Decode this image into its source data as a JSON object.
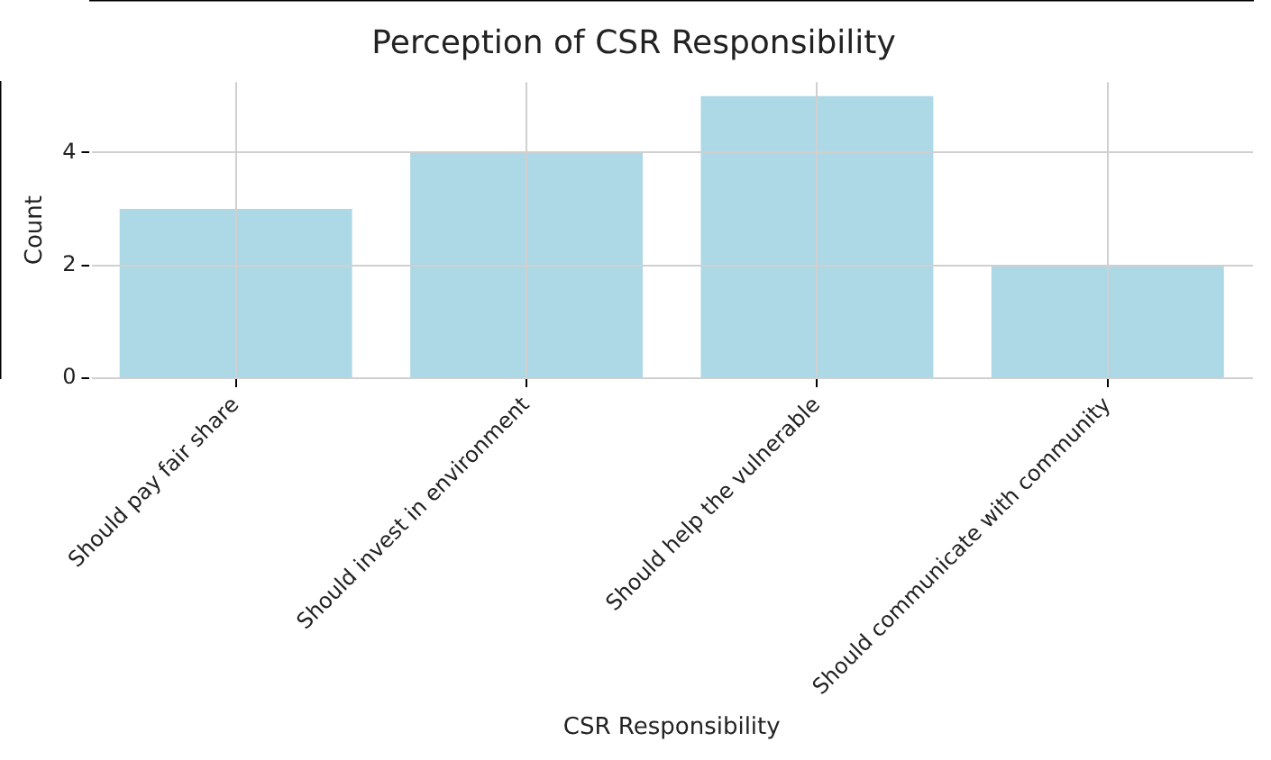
{
  "chart_data": {
    "type": "bar",
    "title": "Perception of CSR Responsibility",
    "xlabel": "CSR Responsibility",
    "ylabel": "Count",
    "categories": [
      "Should pay fair share",
      "Should invest in environment",
      "Should help the vulnerable",
      "Should communicate with community"
    ],
    "values": [
      3,
      4,
      5,
      2
    ],
    "color": "#add8e6",
    "ylim": [
      0,
      5.25
    ],
    "yticks": [
      0,
      2,
      4
    ],
    "grid": true
  }
}
